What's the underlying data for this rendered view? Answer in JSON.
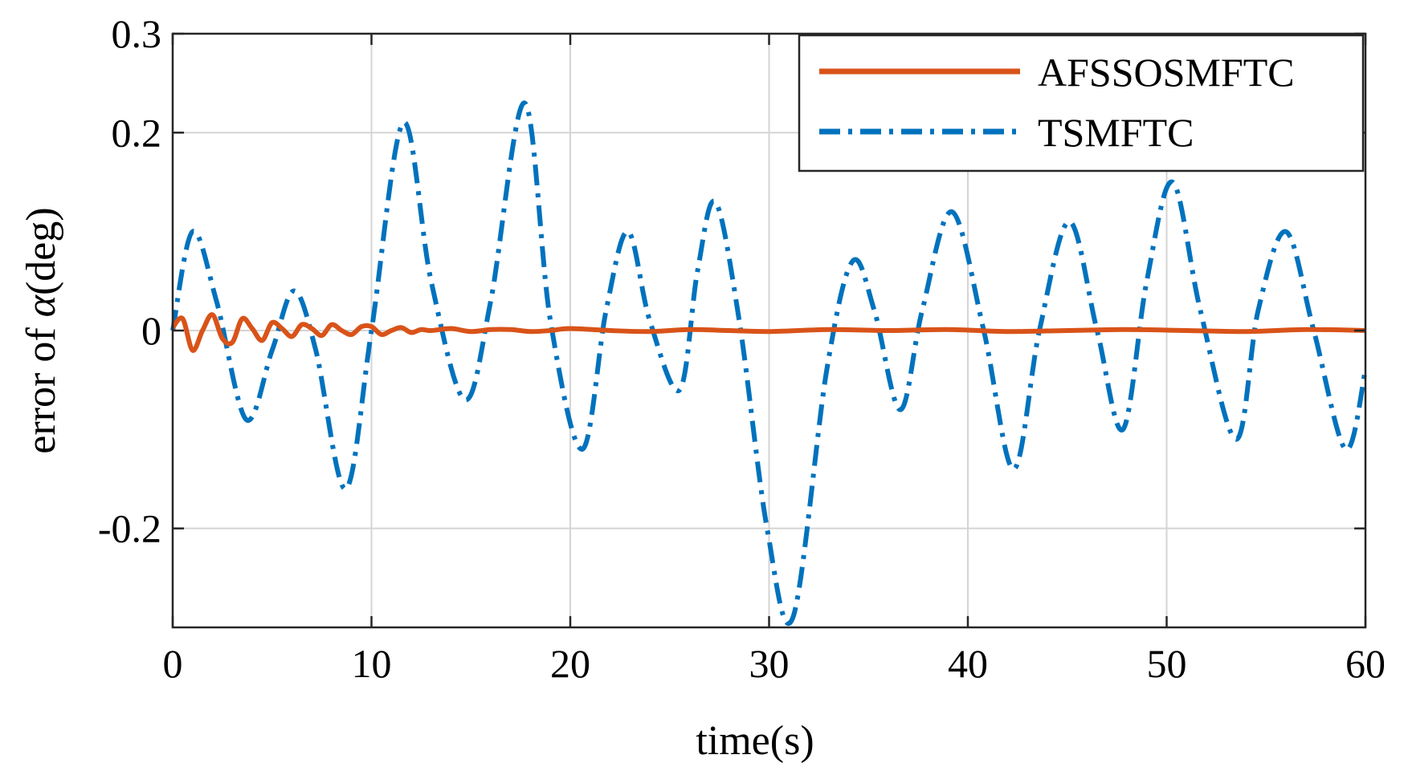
{
  "chart_data": {
    "type": "line",
    "title": "",
    "xlabel": "time(s)",
    "ylabel_prefix": "error of ",
    "ylabel_symbol": "α",
    "ylabel_suffix": "(deg)",
    "xlim": [
      0,
      60
    ],
    "ylim": [
      -0.3,
      0.3
    ],
    "xticks": [
      0,
      10,
      20,
      30,
      40,
      50,
      60
    ],
    "xtick_labels": [
      "0",
      "10",
      "20",
      "30",
      "40",
      "50",
      "60"
    ],
    "yticks": [
      -0.2,
      0,
      0.2,
      0.3
    ],
    "ytick_labels": [
      "-0.2",
      "0",
      "0.2",
      "0.3"
    ],
    "grid": true,
    "legend_position": "top-right",
    "series": [
      {
        "name": "AFSSOSMFTC",
        "color": "#D95319",
        "style": "solid",
        "x": [
          0,
          0.5,
          1.0,
          1.5,
          2.0,
          2.5,
          3.0,
          3.5,
          4.0,
          4.5,
          5.0,
          5.5,
          6.0,
          6.5,
          7.0,
          7.5,
          8.0,
          8.5,
          9.0,
          9.5,
          10.0,
          10.5,
          11.0,
          11.5,
          12.0,
          12.5,
          13.0,
          14.0,
          15.0,
          16.0,
          17.0,
          18.0,
          19.0,
          20.0,
          22.0,
          24.0,
          26.0,
          28.0,
          30.0,
          33.0,
          36.0,
          39.0,
          42.0,
          45.0,
          48.0,
          51.0,
          54.0,
          57.0,
          60.0
        ],
        "y": [
          0.003,
          0.012,
          -0.02,
          0.0,
          0.016,
          -0.008,
          -0.012,
          0.012,
          0.002,
          -0.01,
          0.008,
          0.002,
          -0.006,
          0.006,
          0.002,
          -0.005,
          0.006,
          0.0,
          -0.004,
          0.004,
          0.004,
          -0.004,
          0.0,
          0.003,
          -0.002,
          0.001,
          0.0,
          0.002,
          -0.001,
          0.001,
          0.001,
          -0.001,
          0.0,
          0.002,
          0.0,
          -0.001,
          0.001,
          0.0,
          -0.001,
          0.001,
          0.0,
          0.001,
          -0.001,
          0.0,
          0.001,
          0.0,
          -0.001,
          0.001,
          0.0
        ]
      },
      {
        "name": "TSMFTC",
        "color": "#0072BD",
        "style": "dash-dot",
        "x": [
          0,
          1.0,
          2.2,
          3.7,
          5.0,
          6.1,
          7.2,
          8.7,
          10.0,
          11.6,
          13.0,
          14.7,
          16.0,
          17.7,
          19.0,
          20.6,
          21.8,
          22.9,
          24.0,
          25.5,
          26.4,
          27.3,
          28.5,
          29.9,
          31.2,
          32.9,
          34.2,
          35.3,
          36.6,
          37.7,
          39.2,
          40.8,
          42.3,
          43.6,
          45.1,
          46.5,
          47.8,
          49.0,
          50.3,
          51.7,
          53.5,
          54.6,
          56.0,
          57.4,
          59.0,
          60.0
        ],
        "y": [
          0.0,
          0.1,
          0.03,
          -0.09,
          -0.02,
          0.04,
          -0.02,
          -0.16,
          0.0,
          0.21,
          0.05,
          -0.07,
          0.03,
          0.23,
          0.01,
          -0.12,
          0.02,
          0.1,
          0.01,
          -0.06,
          0.06,
          0.13,
          0.01,
          -0.2,
          -0.29,
          -0.04,
          0.07,
          0.02,
          -0.08,
          0.02,
          0.12,
          0.0,
          -0.14,
          0.0,
          0.11,
          0.0,
          -0.1,
          0.05,
          0.15,
          0.02,
          -0.11,
          0.02,
          0.1,
          0.0,
          -0.12,
          -0.04
        ]
      }
    ]
  }
}
